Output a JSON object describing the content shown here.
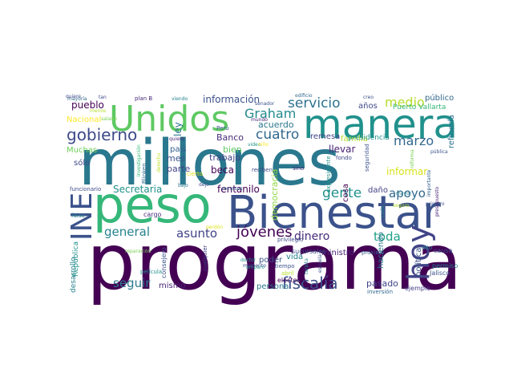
{
  "words": [
    {
      "text": "programa",
      "color": "#440154",
      "rotate": false
    },
    {
      "text": "millones",
      "color": "#2a788e",
      "rotate": false
    },
    {
      "text": "peso",
      "color": "#35b779",
      "rotate": false
    },
    {
      "text": "Bienestar",
      "color": "#3b528b",
      "rotate": false
    },
    {
      "text": "manera",
      "color": "#21918c",
      "rotate": false
    },
    {
      "text": "Unidos",
      "color": "#5ec962",
      "rotate": false
    },
    {
      "text": "INE",
      "color": "#3b528b",
      "rotate": true
    },
    {
      "text": "hoy",
      "color": "#414487",
      "rotate": true
    },
    {
      "text": "gobierno",
      "color": "#3e4a89",
      "rotate": false
    },
    {
      "text": "jóvenes",
      "color": "#440154",
      "rotate": false
    },
    {
      "text": "fiscalía",
      "color": "#3b528b",
      "rotate": false
    },
    {
      "text": "servicio",
      "color": "#2c728e",
      "rotate": false
    },
    {
      "text": "gente",
      "color": "#21918c",
      "rotate": false
    },
    {
      "text": "marzo",
      "color": "#31688e",
      "rotate": false
    },
    {
      "text": "apoyo",
      "color": "#31688e",
      "rotate": false
    },
    {
      "text": "cuatro",
      "color": "#31688e",
      "rotate": false
    },
    {
      "text": "Graham",
      "color": "#238a8d",
      "rotate": false
    },
    {
      "text": "asunto",
      "color": "#404387",
      "rotate": false
    },
    {
      "text": "general",
      "color": "#26828e",
      "rotate": false
    },
    {
      "text": "dinero",
      "color": "#472c7a",
      "rotate": false
    },
    {
      "text": "medio",
      "color": "#b5de2b",
      "rotate": false
    },
    {
      "text": "toda",
      "color": "#1fa187",
      "rotate": false
    },
    {
      "text": "seguir",
      "color": "#2a788e",
      "rotate": false
    },
    {
      "text": "fentanilo",
      "color": "#440154",
      "rotate": false
    },
    {
      "text": "Secretaria",
      "color": "#21918c",
      "rotate": false
    },
    {
      "text": "información",
      "color": "#3b528b",
      "rotate": false
    },
    {
      "text": "pueblo",
      "color": "#440154",
      "rotate": false
    },
    {
      "text": "acuerdo",
      "color": "#2a788e",
      "rotate": false
    },
    {
      "text": "llevar",
      "color": "#482475",
      "rotate": false
    },
    {
      "text": "informar",
      "color": "#d8e219",
      "rotate": false
    },
    {
      "text": "Banco",
      "color": "#472d7b",
      "rotate": false
    },
    {
      "text": "bien",
      "color": "#5ec962",
      "rotate": false
    },
    {
      "text": "beca",
      "color": "#440154",
      "rotate": false
    },
    {
      "text": "trabajo",
      "color": "#404387",
      "rotate": false
    },
    {
      "text": "parte",
      "color": "#414487",
      "rotate": false
    },
    {
      "text": "mes",
      "color": "#3b528b",
      "rotate": false
    },
    {
      "text": "país",
      "color": "#355f8d",
      "rotate": false
    },
    {
      "text": "ley",
      "color": "#2c728e",
      "rotate": true
    },
    {
      "text": "mismo",
      "color": "#482878",
      "rotate": false
    },
    {
      "text": "pasado",
      "color": "#404387",
      "rotate": false
    },
    {
      "text": "cosa",
      "color": "#440154",
      "rotate": true
    },
    {
      "text": "daño",
      "color": "#433e85",
      "rotate": false
    },
    {
      "text": "vida",
      "color": "#26828e",
      "rotate": false
    },
    {
      "text": "poder",
      "color": "#3b528b",
      "rotate": false
    },
    {
      "text": "ministro",
      "color": "#482475",
      "rotate": false
    },
    {
      "text": "haciendo",
      "color": "#2a788e",
      "rotate": true
    },
    {
      "text": "persona",
      "color": "#2a788e",
      "rotate": false
    },
    {
      "text": "remesa",
      "color": "#414487",
      "rotate": false
    },
    {
      "text": "familia",
      "color": "#b5de2b",
      "rotate": false
    },
    {
      "text": "democracia",
      "color": "#8fd744",
      "rotate": true
    },
    {
      "text": "años",
      "color": "#3e4989",
      "rotate": false
    },
    {
      "text": "público",
      "color": "#31688e",
      "rotate": false
    },
    {
      "text": "refinería",
      "color": "#2c728e",
      "rotate": true
    },
    {
      "text": "política",
      "color": "#3b528b",
      "rotate": true
    },
    {
      "text": "Nacional",
      "color": "#fde725",
      "rotate": false
    },
    {
      "text": "Muchas",
      "color": "#6ece58",
      "rotate": false
    },
    {
      "text": "sólo",
      "color": "#3e4989",
      "rotate": false
    },
    {
      "text": "desarrollo",
      "color": "#26828e",
      "rotate": true
    },
    {
      "text": "República",
      "color": "#21918c",
      "rotate": true
    },
    {
      "text": "presidencia",
      "color": "#21918c",
      "rotate": false
    },
    {
      "text": "seguridad",
      "color": "#3b528b",
      "rotate": true
    },
    {
      "text": "Puerto Vallarta",
      "color": "#35b779",
      "rotate": false
    },
    {
      "text": "sucursales",
      "color": "#3b528b",
      "rotate": false
    },
    {
      "text": "electoral",
      "color": "#440154",
      "rotate": false
    },
    {
      "text": "inversión",
      "color": "#31688e",
      "rotate": false
    },
    {
      "text": "ejemplo",
      "color": "#433e85",
      "rotate": false
    },
    {
      "text": "Jalisco",
      "color": "#3b528b",
      "rotate": false
    },
    {
      "text": "permiso",
      "color": "#26828e",
      "rotate": false
    },
    {
      "text": "causa",
      "color": "#3b528b",
      "rotate": false
    },
    {
      "text": "alto",
      "color": "#26828e",
      "rotate": false
    },
    {
      "text": "próximo",
      "color": "#355f8d",
      "rotate": false
    },
    {
      "text": "privilegio",
      "color": "#3e4a89",
      "rotate": false
    },
    {
      "text": "fondo",
      "color": "#3e4a89",
      "rotate": false
    },
    {
      "text": "sino",
      "color": "#482878",
      "rotate": false
    },
    {
      "text": "reciben",
      "color": "#3e4a89",
      "rotate": false
    },
    {
      "text": "expresidente",
      "color": "#21918c",
      "rotate": true
    },
    {
      "text": "consejero",
      "color": "#3b528b",
      "rotate": true
    },
    {
      "text": "cualquier",
      "color": "#414487",
      "rotate": true
    },
    {
      "text": "tiempo",
      "color": "#3b528b",
      "rotate": false
    },
    {
      "text": "abril",
      "color": "#b5de2b",
      "rotate": false
    },
    {
      "text": "cargo",
      "color": "#472d7b",
      "rotate": false
    },
    {
      "text": "película",
      "color": "#21918c",
      "rotate": false
    },
    {
      "text": "reparación",
      "color": "#7ad151",
      "rotate": false
    },
    {
      "text": "funcionario",
      "color": "#3e4a89",
      "rotate": false
    },
    {
      "text": "falso",
      "color": "#26828e",
      "rotate": false
    },
    {
      "text": "mayoría",
      "color": "#31688e",
      "rotate": false
    },
    {
      "text": "salario",
      "color": "#7ad151",
      "rotate": false
    },
    {
      "text": "quiere",
      "color": "#3e4989",
      "rotate": false
    },
    {
      "text": "menos",
      "color": "#b5de2b",
      "rotate": false
    },
    {
      "text": "tan",
      "color": "#3e4989",
      "rotate": false
    },
    {
      "text": "plan B",
      "color": "#482878",
      "rotate": false
    },
    {
      "text": "viendo",
      "color": "#26828e",
      "rotate": false
    },
    {
      "text": "quiero",
      "color": "#482475",
      "rotate": false
    },
    {
      "text": "Perú",
      "color": "#3b528b",
      "rotate": false
    },
    {
      "text": "senador",
      "color": "#3b528b",
      "rotate": false
    },
    {
      "text": "edificio",
      "color": "#31688e",
      "rotate": false
    },
    {
      "text": "creo",
      "color": "#3b528b",
      "rotate": false
    },
    {
      "text": "mundo",
      "color": "#482475",
      "rotate": false
    },
    {
      "text": "video",
      "color": "#21918c",
      "rotate": false
    },
    {
      "text": "niño",
      "color": "#fde725",
      "rotate": false
    },
    {
      "text": "Blinken",
      "color": "#31688e",
      "rotate": true
    },
    {
      "text": "investigación",
      "color": "#35b779",
      "rotate": true
    },
    {
      "text": "derecho",
      "color": "#c2df23",
      "rotate": true
    },
    {
      "text": "bajo",
      "color": "#2a788e",
      "rotate": false
    },
    {
      "text": "cierto",
      "color": "#dde318",
      "rotate": false
    },
    {
      "text": "recursos",
      "color": "#31688e",
      "rotate": false
    },
    {
      "text": "momento",
      "color": "#3e4a89",
      "rotate": false
    },
    {
      "text": "amparo",
      "color": "#21918c",
      "rotate": false
    },
    {
      "text": "perdón",
      "color": "#dde318",
      "rotate": false
    },
    {
      "text": "escuela",
      "color": "#3b528b",
      "rotate": true
    },
    {
      "text": "tarjeta",
      "color": "#26828e",
      "rotate": true
    },
    {
      "text": "cada",
      "color": "#26828e",
      "rotate": true
    },
    {
      "text": "importante",
      "color": "#355f8d",
      "rotate": true
    },
    {
      "text": "primero",
      "color": "#3b528b",
      "rotate": false
    },
    {
      "text": "reforma",
      "color": "#7ad151",
      "rotate": true
    },
    {
      "text": "pública",
      "color": "#3b528b",
      "rotate": false
    },
    {
      "text": "presupuesto",
      "color": "#482475",
      "rotate": true
    },
    {
      "text": "mayor",
      "color": "#26828e",
      "rotate": false
    },
    {
      "text": "seguro",
      "color": "#b5de2b",
      "rotate": false
    },
    {
      "text": "deje",
      "color": "#3b528b",
      "rotate": false
    },
    {
      "text": "doctor",
      "color": "#21918c",
      "rotate": false
    }
  ]
}
